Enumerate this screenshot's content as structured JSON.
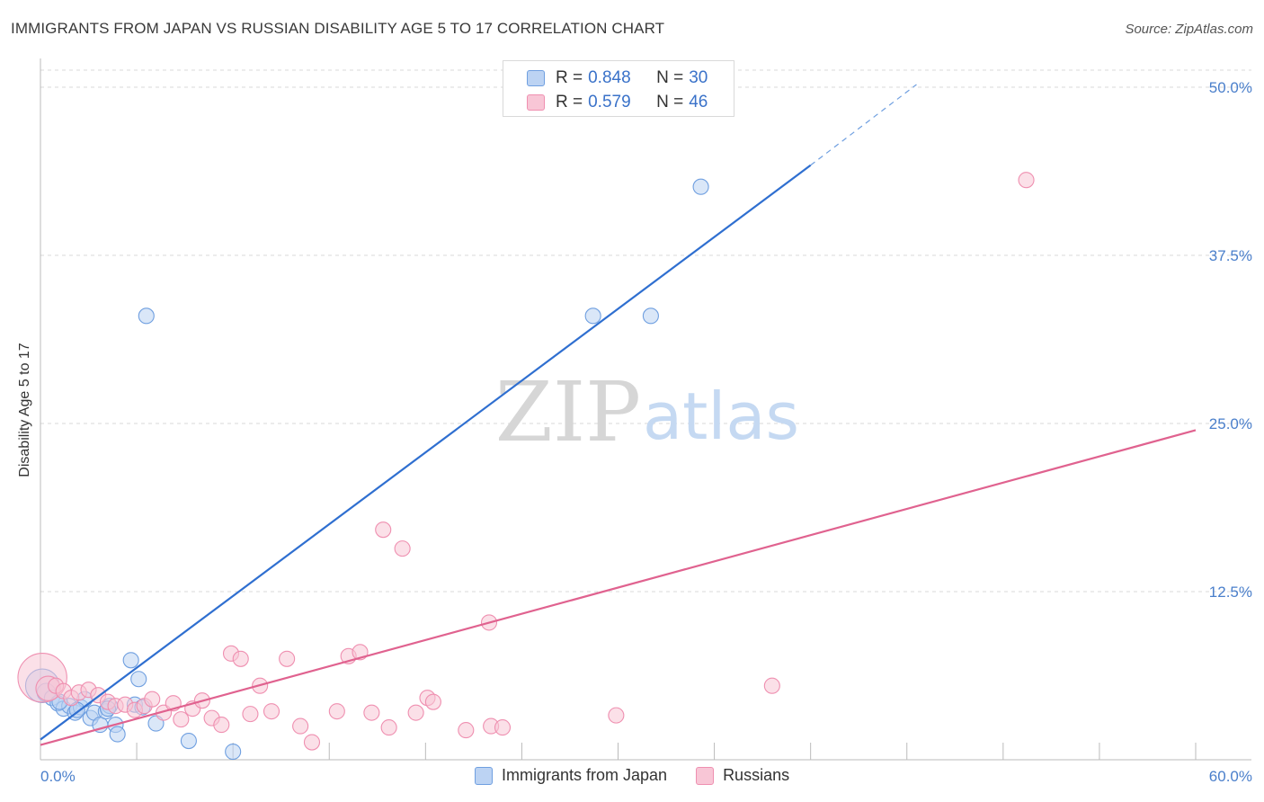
{
  "header": {
    "title": "IMMIGRANTS FROM JAPAN VS RUSSIAN DISABILITY AGE 5 TO 17 CORRELATION CHART",
    "source": "Source: ZipAtlas.com"
  },
  "watermark": {
    "zip": "ZIP",
    "atlas": "atlas"
  },
  "legend": {
    "r_label": "R =",
    "n_label": "N =",
    "entries": [
      {
        "name": "Immigrants from Japan",
        "r": "0.848",
        "n": "30",
        "color": "#6f9fe0",
        "fill": "#bcd3f3",
        "line": "#2f6fd0"
      },
      {
        "name": "Russians",
        "r": "0.579",
        "n": "46",
        "color": "#ef8fb0",
        "fill": "#f8c6d6",
        "line": "#e0628f"
      }
    ]
  },
  "chart_data": {
    "type": "scatter",
    "title": "IMMIGRANTS FROM JAPAN VS RUSSIAN DISABILITY AGE 5 TO 17 CORRELATION CHART",
    "xlabel": "",
    "ylabel": "Disability Age 5 to 17",
    "xlim": [
      0,
      60
    ],
    "ylim": [
      0,
      52
    ],
    "x_tick_labels": [
      {
        "value": 0,
        "label": "0.0%"
      },
      {
        "value": 60,
        "label": "60.0%"
      }
    ],
    "y_tick_labels": [
      {
        "value": 12.5,
        "label": "12.5%"
      },
      {
        "value": 25,
        "label": "25.0%"
      },
      {
        "value": 37.5,
        "label": "37.5%"
      },
      {
        "value": 50,
        "label": "50.0%"
      }
    ],
    "series": [
      {
        "name": "Immigrants from Japan",
        "trend": {
          "x0": 0,
          "y0": 1.5,
          "x1": 40,
          "y1": 44.2,
          "dash_to_x": 45.5,
          "dash_to_y": 50.2
        },
        "points": [
          [
            0.1,
            5.5,
            2.2
          ],
          [
            0.3,
            5.0,
            1.2
          ],
          [
            0.6,
            4.6,
            1.0
          ],
          [
            0.9,
            4.2,
            1.0
          ],
          [
            1.2,
            3.8,
            1.0
          ],
          [
            1.5,
            4.0,
            1.0
          ],
          [
            1.8,
            3.5,
            1.0
          ],
          [
            2.1,
            3.9,
            1.0
          ],
          [
            2.3,
            4.5,
            1.0
          ],
          [
            2.6,
            3.1,
            1.0
          ],
          [
            2.8,
            3.5,
            1.0
          ],
          [
            3.1,
            2.6,
            1.0
          ],
          [
            3.4,
            3.6,
            1.0
          ],
          [
            3.6,
            4.0,
            1.0
          ],
          [
            3.9,
            2.6,
            1.0
          ],
          [
            4.0,
            1.9,
            1.0
          ],
          [
            4.7,
            7.4,
            1.0
          ],
          [
            4.9,
            4.1,
            1.0
          ],
          [
            5.1,
            6.0,
            1.0
          ],
          [
            5.3,
            3.9,
            1.0
          ],
          [
            5.5,
            33.0,
            1.0
          ],
          [
            6.0,
            2.7,
            1.0
          ],
          [
            7.7,
            1.4,
            1.0
          ],
          [
            10.0,
            0.6,
            1.0
          ],
          [
            28.7,
            33.0,
            1.0
          ],
          [
            31.7,
            33.0,
            1.0
          ],
          [
            34.3,
            42.6,
            1.0
          ],
          [
            1.0,
            4.3,
            1.0
          ],
          [
            1.9,
            3.7,
            1.0
          ],
          [
            3.5,
            3.8,
            1.0
          ]
        ]
      },
      {
        "name": "Russians",
        "trend": {
          "x0": 0,
          "y0": 1.1,
          "x1": 60,
          "y1": 24.5
        },
        "points": [
          [
            0.1,
            6.1,
            3.2
          ],
          [
            0.4,
            5.3,
            1.6
          ],
          [
            0.8,
            5.5,
            1.0
          ],
          [
            1.2,
            5.1,
            1.0
          ],
          [
            1.6,
            4.6,
            1.0
          ],
          [
            2.0,
            5.0,
            1.0
          ],
          [
            2.5,
            5.2,
            1.0
          ],
          [
            3.0,
            4.8,
            1.0
          ],
          [
            3.5,
            4.3,
            1.0
          ],
          [
            3.9,
            4.0,
            1.0
          ],
          [
            4.4,
            4.1,
            1.0
          ],
          [
            4.9,
            3.7,
            1.0
          ],
          [
            5.4,
            4.0,
            1.0
          ],
          [
            5.8,
            4.5,
            1.0
          ],
          [
            6.4,
            3.5,
            1.0
          ],
          [
            6.9,
            4.2,
            1.0
          ],
          [
            7.3,
            3.0,
            1.0
          ],
          [
            7.9,
            3.8,
            1.0
          ],
          [
            8.4,
            4.4,
            1.0
          ],
          [
            8.9,
            3.1,
            1.0
          ],
          [
            9.4,
            2.6,
            1.0
          ],
          [
            9.9,
            7.9,
            1.0
          ],
          [
            10.4,
            7.5,
            1.0
          ],
          [
            10.9,
            3.4,
            1.0
          ],
          [
            11.4,
            5.5,
            1.0
          ],
          [
            12.0,
            3.6,
            1.0
          ],
          [
            12.8,
            7.5,
            1.0
          ],
          [
            13.5,
            2.5,
            1.0
          ],
          [
            14.1,
            1.3,
            1.0
          ],
          [
            15.4,
            3.6,
            1.0
          ],
          [
            16.0,
            7.7,
            1.0
          ],
          [
            16.6,
            8.0,
            1.0
          ],
          [
            17.2,
            3.5,
            1.0
          ],
          [
            17.8,
            17.1,
            1.0
          ],
          [
            18.1,
            2.4,
            1.0
          ],
          [
            18.8,
            15.7,
            1.0
          ],
          [
            19.5,
            3.5,
            1.0
          ],
          [
            20.1,
            4.6,
            1.0
          ],
          [
            20.4,
            4.3,
            1.0
          ],
          [
            22.1,
            2.2,
            1.0
          ],
          [
            23.3,
            10.2,
            1.0
          ],
          [
            23.4,
            2.5,
            1.0
          ],
          [
            24.0,
            2.4,
            1.0
          ],
          [
            29.9,
            3.3,
            1.0
          ],
          [
            38.0,
            5.5,
            1.0
          ],
          [
            51.2,
            43.1,
            1.0
          ]
        ]
      }
    ]
  }
}
